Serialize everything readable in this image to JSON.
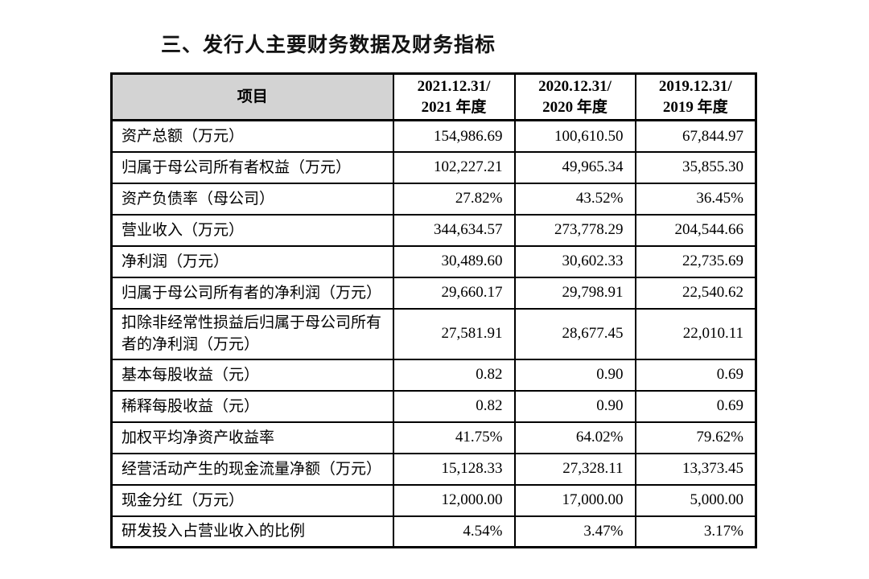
{
  "document": {
    "title": "三、发行人主要财务数据及财务指标"
  },
  "colors": {
    "header_fill": "#d3d3d3",
    "border": "#000000",
    "page_bg": "#ffffff"
  },
  "table": {
    "item_header": "项目",
    "period_headers": [
      {
        "date": "2021.12.31/",
        "year": "2021 年度"
      },
      {
        "date": "2020.12.31/",
        "year": "2020 年度"
      },
      {
        "date": "2019.12.31/",
        "year": "2019 年度"
      }
    ],
    "rows": [
      {
        "label": "资产总额（万元）",
        "values": [
          "154,986.69",
          "100,610.50",
          "67,844.97"
        ]
      },
      {
        "label": "归属于母公司所有者权益（万元）",
        "values": [
          "102,227.21",
          "49,965.34",
          "35,855.30"
        ]
      },
      {
        "label": "资产负债率（母公司）",
        "values": [
          "27.82%",
          "43.52%",
          "36.45%"
        ]
      },
      {
        "label": "营业收入（万元）",
        "values": [
          "344,634.57",
          "273,778.29",
          "204,544.66"
        ]
      },
      {
        "label": "净利润（万元）",
        "values": [
          "30,489.60",
          "30,602.33",
          "22,735.69"
        ]
      },
      {
        "label": "归属于母公司所有者的净利润（万元）",
        "values": [
          "29,660.17",
          "29,798.91",
          "22,540.62"
        ]
      },
      {
        "label": "扣除非经常性损益后归属于母公司所有者的净利润（万元）",
        "values": [
          "27,581.91",
          "28,677.45",
          "22,010.11"
        ]
      },
      {
        "label": "基本每股收益（元）",
        "values": [
          "0.82",
          "0.90",
          "0.69"
        ]
      },
      {
        "label": "稀释每股收益（元）",
        "values": [
          "0.82",
          "0.90",
          "0.69"
        ]
      },
      {
        "label": "加权平均净资产收益率",
        "values": [
          "41.75%",
          "64.02%",
          "79.62%"
        ]
      },
      {
        "label": "经营活动产生的现金流量净额（万元）",
        "values": [
          "15,128.33",
          "27,328.11",
          "13,373.45"
        ]
      },
      {
        "label": "现金分红（万元）",
        "values": [
          "12,000.00",
          "17,000.00",
          "5,000.00"
        ]
      },
      {
        "label": "研发投入占营业收入的比例",
        "values": [
          "4.54%",
          "3.47%",
          "3.17%"
        ]
      }
    ]
  }
}
